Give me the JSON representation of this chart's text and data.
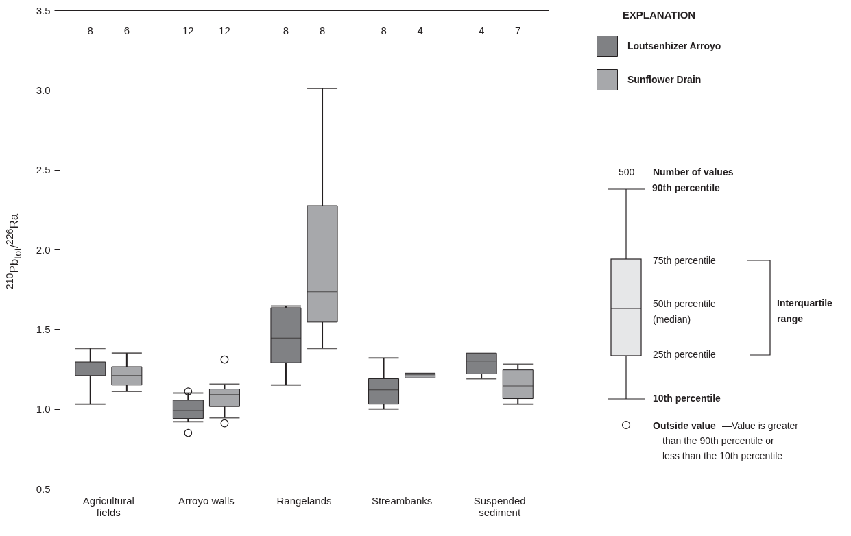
{
  "chart_data": {
    "type": "box",
    "ylabel": "$^{210}$Pb$_{tot}$/$^{226}$Ra",
    "legend_title": "EXPLANATION",
    "legend": "right",
    "grid": false,
    "categories": [
      "Agricultural fields",
      "Arroyo walls",
      "Rangelands",
      "Streambanks",
      "Suspended sediment"
    ],
    "ylim": [
      0.5,
      3.5
    ],
    "yticks": [
      0.5,
      {
        "value": 1,
        "label": "1.0"
      },
      1.5,
      {
        "value": 2,
        "label": "2.0"
      },
      2.5,
      {
        "value": 3,
        "label": "3.0"
      },
      3.5
    ],
    "series": [
      {
        "name": "Loutsenhizer Arroyo",
        "color": "#808184",
        "boxes": [
          {
            "low": 1.03,
            "q1": 1.21,
            "median": 1.25,
            "q3": 1.295,
            "high": 1.38
          },
          {
            "low": 0.92,
            "q1": 0.94,
            "median": 0.99,
            "q3": 1.055,
            "high": 1.1,
            "outliers": [
              1.11,
              0.85
            ]
          },
          {
            "low": 1.15,
            "q1": 1.29,
            "median": 1.445,
            "q3": 1.635,
            "high": 1.645
          },
          {
            "low": 1.0,
            "q1": 1.03,
            "median": 1.12,
            "q3": 1.19,
            "high": 1.32
          },
          {
            "low": 1.19,
            "q1": 1.22,
            "median": 1.3,
            "q3": 1.35,
            "high": 1.35
          }
        ]
      },
      {
        "name": "Sunflower Drain",
        "color": "#a7a8ab",
        "boxes": [
          {
            "low": 1.11,
            "q1": 1.15,
            "median": 1.21,
            "q3": 1.265,
            "high": 1.35
          },
          {
            "low": 0.945,
            "q1": 1.015,
            "median": 1.09,
            "q3": 1.125,
            "high": 1.155,
            "outliers": [
              1.31,
              0.91
            ]
          },
          {
            "low": 1.38,
            "q1": 1.545,
            "median": 1.735,
            "q3": 2.275,
            "high": 3.01
          },
          {
            "low": 1.195,
            "q1": 1.195,
            "median": 1.215,
            "q3": 1.225,
            "high": 1.225
          },
          {
            "low": 1.03,
            "q1": 1.065,
            "median": 1.145,
            "q3": 1.245,
            "high": 1.28
          }
        ]
      }
    ],
    "annotations": [
      "8",
      "6",
      "12",
      "12",
      "8",
      "8",
      "8",
      "4",
      "4",
      "7",
      "500",
      "Number of values",
      "90th percentile",
      "75th percentile",
      "50th percentile",
      "(median)",
      "25th percentile",
      "Interquartile",
      "range",
      "10th percentile",
      "Outside value",
      "—Value is greater",
      "than the 90th percentile or",
      "less than the 10th percentile"
    ]
  }
}
